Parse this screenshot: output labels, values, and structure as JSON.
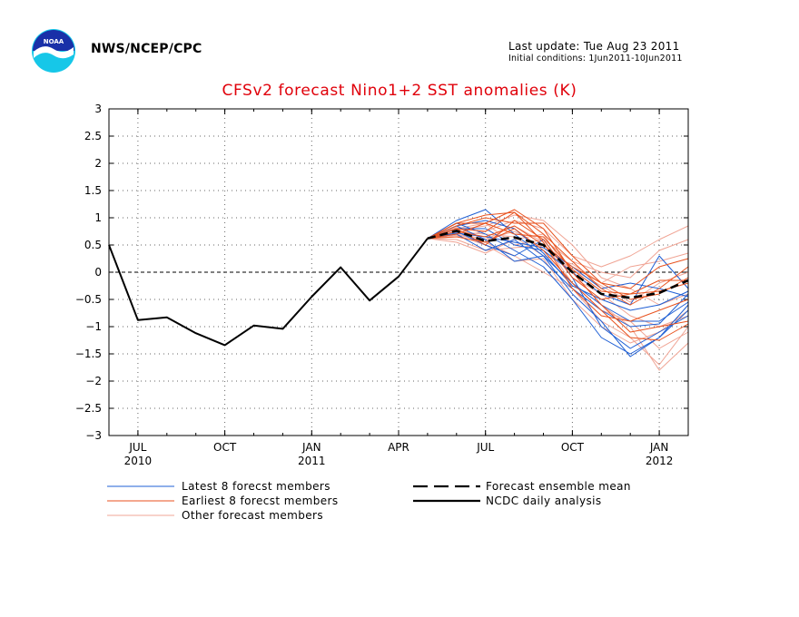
{
  "header": {
    "agency": "NWS/NCEP/CPC",
    "last_update": "Last update: Tue Aug 23 2011",
    "initial_conditions": "Initial conditions: 1Jun2011-10Jun2011",
    "logo_text": "NOAA"
  },
  "chart_data": {
    "type": "line",
    "title": "CFSv2 forecast Nino1+2 SST anomalies (K)",
    "xlabel": "",
    "ylabel": "",
    "ylim": [
      -3,
      3
    ],
    "yticks": [
      -3,
      -2.5,
      -2,
      -1.5,
      -1,
      -0.5,
      0,
      0.5,
      1,
      1.5,
      2,
      2.5,
      3
    ],
    "ytick_labels": [
      "−3",
      "−2.5",
      "−2",
      "−1.5",
      "−1",
      "−0.5",
      "0",
      "0.5",
      "1",
      "1.5",
      "2",
      "2.5",
      "3"
    ],
    "x_range": [
      "2010-06",
      "2012-02"
    ],
    "xticks": [
      {
        "month": "2010-07",
        "label": "JUL",
        "year": "2010"
      },
      {
        "month": "2010-10",
        "label": "OCT",
        "year": ""
      },
      {
        "month": "2011-01",
        "label": "JAN",
        "year": "2011"
      },
      {
        "month": "2011-04",
        "label": "APR",
        "year": ""
      },
      {
        "month": "2011-07",
        "label": "JUL",
        "year": ""
      },
      {
        "month": "2011-10",
        "label": "OCT",
        "year": ""
      },
      {
        "month": "2012-01",
        "label": "JAN",
        "year": "2012"
      }
    ],
    "grid": true,
    "zero_line": true,
    "forecast_months": [
      "2011-05",
      "2011-06",
      "2011-07",
      "2011-08",
      "2011-09",
      "2011-10",
      "2011-11",
      "2011-12",
      "2012-01",
      "2012-02"
    ],
    "series": [
      {
        "name": "NCDC daily analysis",
        "style": "solid",
        "color": "#000000",
        "x": [
          "2010-06",
          "2010-07",
          "2010-08",
          "2010-09",
          "2010-10",
          "2010-11",
          "2010-12",
          "2011-01",
          "2011-02",
          "2011-03",
          "2011-04",
          "2011-05"
        ],
        "values": [
          0.5,
          -0.88,
          -0.83,
          -1.12,
          -1.34,
          -0.98,
          -1.04,
          -0.45,
          0.09,
          -0.52,
          -0.08,
          0.62
        ]
      },
      {
        "name": "Forecast ensemble mean",
        "style": "dashed",
        "color": "#000000",
        "values": [
          0.62,
          0.76,
          0.57,
          0.64,
          0.5,
          0.0,
          -0.4,
          -0.47,
          -0.38,
          -0.15
        ]
      },
      {
        "name": "Latest 8 forecst members",
        "style": "solid",
        "color": "#1f5fd4",
        "members": [
          [
            0.62,
            0.95,
            1.15,
            0.7,
            0.3,
            -0.2,
            -0.6,
            -0.9,
            -0.9,
            -0.55
          ],
          [
            0.62,
            0.85,
            0.6,
            0.2,
            0.3,
            -0.4,
            -0.9,
            -1.55,
            -1.2,
            -0.7
          ],
          [
            0.62,
            0.7,
            0.4,
            0.6,
            0.2,
            -0.3,
            -0.7,
            -1.0,
            -0.95,
            -0.4
          ],
          [
            0.62,
            0.8,
            0.8,
            0.5,
            0.4,
            0.0,
            -0.4,
            -0.6,
            0.3,
            -0.3
          ],
          [
            0.62,
            0.75,
            0.5,
            0.3,
            0.6,
            -0.1,
            -1.0,
            -1.4,
            -1.1,
            -0.8
          ],
          [
            0.62,
            0.9,
            0.7,
            0.4,
            0.1,
            -0.5,
            -1.2,
            -1.5,
            -1.2,
            -0.6
          ],
          [
            0.62,
            0.72,
            0.65,
            0.55,
            0.45,
            0.1,
            -0.3,
            -0.2,
            -0.3,
            -0.45
          ],
          [
            0.62,
            0.85,
            0.95,
            0.8,
            0.35,
            -0.25,
            -0.5,
            -0.7,
            -0.6,
            -0.35
          ]
        ]
      },
      {
        "name": "Earliest 8 forecst members",
        "style": "solid",
        "color": "#e8521e",
        "members": [
          [
            0.62,
            0.9,
            1.05,
            1.1,
            0.7,
            0.2,
            -0.3,
            -0.6,
            -0.3,
            0.1
          ],
          [
            0.62,
            0.7,
            0.9,
            1.15,
            0.8,
            0.0,
            -0.6,
            -1.1,
            -1.0,
            -0.9
          ],
          [
            0.62,
            0.8,
            0.5,
            0.95,
            0.6,
            -0.1,
            -0.5,
            -0.4,
            -0.15,
            -0.15
          ],
          [
            0.62,
            0.75,
            0.65,
            0.85,
            0.5,
            0.1,
            -0.2,
            -0.3,
            0.1,
            0.25
          ],
          [
            0.62,
            0.85,
            1.0,
            0.9,
            0.9,
            0.3,
            -0.2,
            -0.5,
            -0.4,
            -0.1
          ],
          [
            0.62,
            0.65,
            0.55,
            0.8,
            0.4,
            -0.2,
            -0.7,
            -1.2,
            -1.25,
            -0.95
          ],
          [
            0.62,
            0.8,
            0.75,
            1.1,
            0.55,
            -0.3,
            -0.8,
            -0.9,
            -0.7,
            -0.5
          ],
          [
            0.62,
            0.9,
            0.9,
            0.7,
            0.65,
            0.05,
            -0.35,
            -0.4,
            -0.35,
            -0.2
          ]
        ]
      },
      {
        "name": "Other forecast members",
        "style": "solid",
        "color": "#f0a494",
        "members": [
          [
            0.62,
            0.6,
            0.4,
            0.45,
            0.5,
            0.0,
            -0.6,
            -1.0,
            -1.8,
            -1.3
          ],
          [
            0.62,
            0.65,
            0.75,
            0.95,
            0.8,
            0.3,
            0.1,
            0.3,
            0.6,
            0.85
          ],
          [
            0.62,
            0.7,
            0.55,
            0.3,
            0.0,
            -0.3,
            -0.9,
            -1.2,
            -1.7,
            -1.0
          ],
          [
            0.62,
            0.8,
            0.9,
            0.5,
            0.6,
            0.2,
            0.0,
            -0.1,
            0.4,
            0.6
          ],
          [
            0.62,
            0.55,
            0.35,
            0.6,
            0.7,
            -0.1,
            -0.4,
            -0.8,
            -1.0,
            -0.8
          ],
          [
            0.62,
            0.72,
            0.6,
            0.75,
            0.45,
            0.05,
            -0.25,
            -0.55,
            -0.2,
            0.0
          ],
          [
            0.62,
            0.78,
            0.85,
            1.05,
            0.95,
            0.5,
            -0.1,
            -0.3,
            -0.6,
            -0.4
          ],
          [
            0.62,
            0.68,
            0.5,
            0.2,
            0.25,
            -0.5,
            -1.0,
            -1.3,
            -1.1,
            -0.7
          ],
          [
            0.62,
            0.74,
            0.7,
            0.65,
            0.3,
            0.15,
            -0.2,
            0.1,
            0.2,
            0.35
          ],
          [
            0.62,
            0.82,
            0.6,
            0.85,
            0.55,
            -0.2,
            -0.7,
            -0.9,
            -1.4,
            -1.1
          ]
        ]
      }
    ],
    "legend": [
      {
        "label": "Latest 8 forecst members",
        "style": "solid",
        "color": "#1f5fd4"
      },
      {
        "label": "Earliest 8 forecst members",
        "style": "solid",
        "color": "#e8521e"
      },
      {
        "label": "Other forecast members",
        "style": "solid",
        "color": "#f0a494"
      },
      {
        "label": "Forecast ensemble mean",
        "style": "dashed",
        "color": "#000000"
      },
      {
        "label": "NCDC daily analysis",
        "style": "solid",
        "color": "#000000"
      }
    ],
    "legend_placement": "bottom"
  }
}
